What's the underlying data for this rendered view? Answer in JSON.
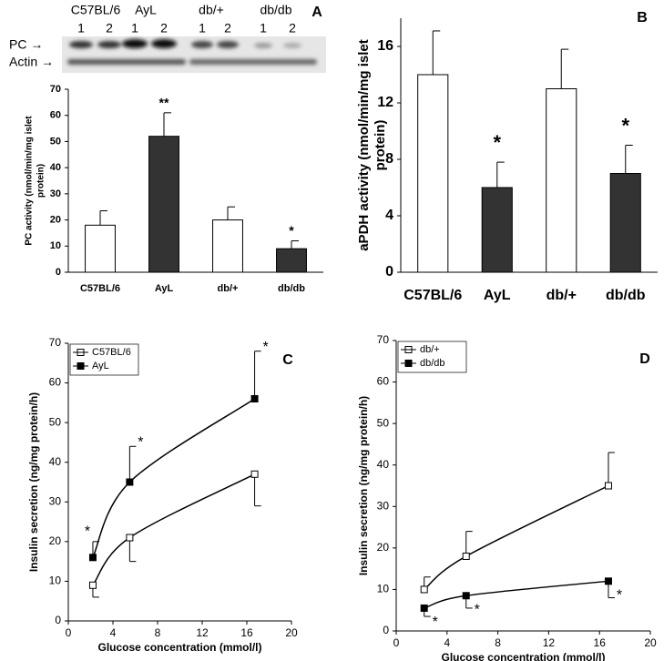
{
  "blot": {
    "group_labels": [
      "C57BL/6",
      "AyL",
      "db/+",
      "db/db"
    ],
    "lanes": [
      "1",
      "2",
      "1",
      "2",
      "1",
      "2",
      "1",
      "2"
    ],
    "rows": [
      "PC →",
      "Actin →"
    ]
  },
  "chart_data": [
    {
      "type": "bar",
      "panel": "A",
      "ylabel": [
        "PC activity (nmol/min/mg islet",
        "protein)"
      ],
      "categories": [
        "C57BL/6",
        "AyL",
        "db/+",
        "db/db"
      ],
      "values": [
        18,
        52,
        20,
        9
      ],
      "errors": [
        5.5,
        9,
        5,
        3
      ],
      "colors": [
        "#ffffff",
        "#333333",
        "#ffffff",
        "#333333"
      ],
      "significance": [
        null,
        "**",
        null,
        "*"
      ],
      "ylim": [
        0,
        70
      ],
      "yticks": [
        0,
        10,
        20,
        30,
        40,
        50,
        60,
        70
      ]
    },
    {
      "type": "bar",
      "panel": "B",
      "ylabel": [
        "aPDH activity (nmol/min/mg islet",
        "protein)"
      ],
      "categories": [
        "C57BL/6",
        "AyL",
        "db/+",
        "db/db"
      ],
      "values": [
        14,
        6,
        13,
        7
      ],
      "errors": [
        3.1,
        1.8,
        2.8,
        2
      ],
      "colors": [
        "#ffffff",
        "#333333",
        "#ffffff",
        "#333333"
      ],
      "significance": [
        null,
        "*",
        null,
        "*"
      ],
      "ylim": [
        0,
        18
      ],
      "yticks": [
        0,
        4,
        8,
        12,
        16
      ]
    },
    {
      "type": "line",
      "panel": "C",
      "xlabel": "Glucose concentration (mmol/l)",
      "ylabel": "Insulin secretion (ng/mg protein/h)",
      "x": [
        2.2,
        5.5,
        16.7
      ],
      "series": [
        {
          "name": "C57BL/6",
          "color": "#ffffff",
          "values": [
            9,
            21,
            37
          ],
          "errors": [
            3,
            6,
            8
          ],
          "error_direction": "down"
        },
        {
          "name": "AyL",
          "color": "#000000",
          "values": [
            16,
            35,
            56
          ],
          "errors": [
            4,
            9,
            12
          ],
          "error_direction": "up",
          "significance": [
            "*",
            "*",
            "*"
          ]
        }
      ],
      "xlim": [
        0,
        20
      ],
      "xticks": [
        0,
        4,
        8,
        12,
        16,
        20
      ],
      "ylim": [
        0,
        70
      ],
      "yticks": [
        0,
        10,
        20,
        30,
        40,
        50,
        60,
        70
      ]
    },
    {
      "type": "line",
      "panel": "D",
      "xlabel": "Glucose concentration (mmol/l)",
      "ylabel": "Insulin secretion (ng/mg protein/h)",
      "x": [
        2.2,
        5.5,
        16.7
      ],
      "series": [
        {
          "name": "db/+",
          "color": "#ffffff",
          "values": [
            10,
            18,
            35
          ],
          "errors": [
            3,
            6,
            8
          ],
          "error_direction": "up"
        },
        {
          "name": "db/db",
          "color": "#000000",
          "values": [
            5.5,
            8.5,
            12
          ],
          "errors": [
            2,
            3,
            4
          ],
          "error_direction": "down",
          "significance": [
            "*",
            "*",
            "*"
          ]
        }
      ],
      "xlim": [
        0,
        20
      ],
      "xticks": [
        0,
        4,
        8,
        12,
        16,
        20
      ],
      "ylim": [
        0,
        70
      ],
      "yticks": [
        0,
        10,
        20,
        30,
        40,
        50,
        60,
        70
      ]
    }
  ]
}
